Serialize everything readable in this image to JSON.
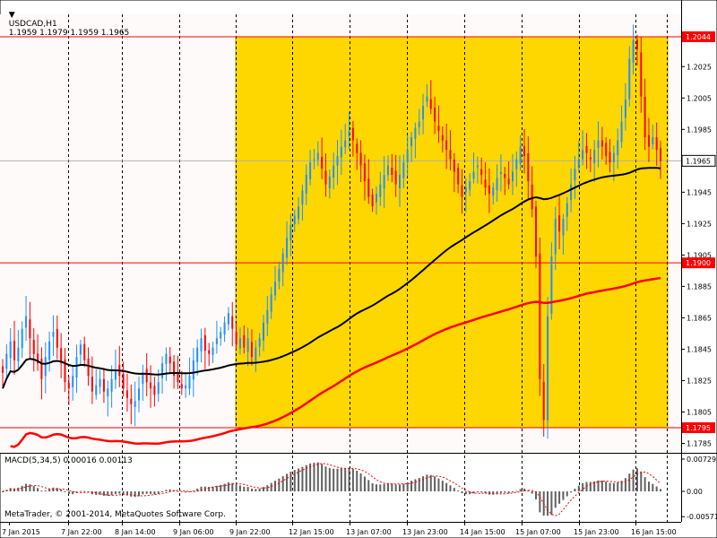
{
  "header": {
    "symbol": "USDCAD,H1",
    "quote_values": "1.1959 1.1979 1.1959 1.1965",
    "dropdown_icon": "triangle-down-icon"
  },
  "copyright": "MetaTrader, © 2001-2014, MetaQuotes Software Corp.",
  "macd": {
    "label": "MACD(5,34,5) 0.00016 0.00113",
    "ticks": [
      {
        "label": "0.00729",
        "value": 0.00729
      },
      {
        "label": "0.00",
        "value": 0
      },
      {
        "label": "-0.00571",
        "value": -0.00571
      }
    ]
  },
  "price_axis": {
    "ticks": [
      {
        "label": "1.2025",
        "value": 1.2025
      },
      {
        "label": "1.2005",
        "value": 1.2005
      },
      {
        "label": "1.1985",
        "value": 1.1985
      },
      {
        "label": "1.1945",
        "value": 1.1945
      },
      {
        "label": "1.1925",
        "value": 1.1925
      },
      {
        "label": "1.1905",
        "value": 1.1905
      },
      {
        "label": "1.1885",
        "value": 1.1885
      },
      {
        "label": "1.1865",
        "value": 1.1865
      },
      {
        "label": "1.1845",
        "value": 1.1845
      },
      {
        "label": "1.1825",
        "value": 1.1825
      },
      {
        "label": "1.1805",
        "value": 1.1805
      },
      {
        "label": "1.1785",
        "value": 1.1785
      }
    ],
    "tags": [
      {
        "label": "1.2044",
        "value": 1.2044,
        "style": "level"
      },
      {
        "label": "1.1965",
        "value": 1.1965,
        "style": "current"
      },
      {
        "label": "1.1900",
        "value": 1.19,
        "style": "level"
      },
      {
        "label": "1.1795",
        "value": 1.1795,
        "style": "level"
      }
    ]
  },
  "time_axis": {
    "labels": [
      "7 Jan 2015",
      "7 Jan 22:00",
      "8 Jan 14:00",
      "9 Jan 06:00",
      "9 Jan 22:00",
      "12 Jan 15:00",
      "13 Jan 07:00",
      "13 Jan 23:00",
      "14 Jan 15:00",
      "15 Jan 07:00",
      "15 Jan 23:00",
      "16 Jan 15:00"
    ]
  },
  "colors": {
    "bull": "#1e90ff",
    "bear": "#ff0000",
    "ma_fast": "#000000",
    "ma_slow": "#ff0000",
    "rect_fill": "#ffd700",
    "level_line": "#ff0000",
    "grid": "#000000",
    "macd_hist": "#606060",
    "macd_signal": "#ff0000"
  },
  "chart_data": {
    "type": "candlestick",
    "instrument": "USDCAD",
    "timeframe": "H1",
    "ylim": [
      1.1779,
      1.2056
    ],
    "levels": [
      1.2044,
      1.19,
      1.1795
    ],
    "rectangle": {
      "price_top": 1.2044,
      "price_bottom": 1.1795
    },
    "closes": [
      1.183,
      1.1842,
      1.185,
      1.1838,
      1.1846,
      1.1858,
      1.1866,
      1.1852,
      1.1842,
      1.1836,
      1.1826,
      1.184,
      1.185,
      1.1856,
      1.1846,
      1.1836,
      1.1824,
      1.182,
      1.1828,
      1.184,
      1.1848,
      1.1838,
      1.1828,
      1.1818,
      1.1822,
      1.1826,
      1.1818,
      1.182,
      1.1826,
      1.1832,
      1.1828,
      1.182,
      1.1814,
      1.181,
      1.1812,
      1.182,
      1.183,
      1.1824,
      1.182,
      1.1816,
      1.1824,
      1.1836,
      1.1842,
      1.1836,
      1.1828,
      1.1824,
      1.182,
      1.1822,
      1.1828,
      1.1838,
      1.1846,
      1.1852,
      1.1844,
      1.1842,
      1.1846,
      1.1852,
      1.1856,
      1.1862,
      1.1868,
      1.1858,
      1.1848,
      1.1852,
      1.1846,
      1.1852,
      1.184,
      1.1846,
      1.1852,
      1.1862,
      1.187,
      1.188,
      1.1888,
      1.1896,
      1.1906,
      1.1916,
      1.1924,
      1.193,
      1.1936,
      1.1946,
      1.1956,
      1.1964,
      1.1966,
      1.197,
      1.196,
      1.195,
      1.1955,
      1.1962,
      1.1968,
      1.1974,
      1.1978,
      1.1984,
      1.1978,
      1.197,
      1.1962,
      1.1952,
      1.1942,
      1.1936,
      1.1944,
      1.195,
      1.1956,
      1.1962,
      1.1956,
      1.195,
      1.1956,
      1.1964,
      1.1972,
      1.198,
      1.1986,
      1.199,
      1.2,
      1.2006,
      1.1998,
      1.199,
      1.1984,
      1.1978,
      1.1972,
      1.1966,
      1.1958,
      1.195,
      1.1942,
      1.1948,
      1.1952,
      1.1958,
      1.1962,
      1.1956,
      1.1948,
      1.1944,
      1.1948,
      1.1954,
      1.1958,
      1.1954,
      1.195,
      1.1958,
      1.1966,
      1.1974,
      1.1968,
      1.1952,
      1.1934,
      1.1904,
      1.1826,
      1.18,
      1.1866,
      1.1904,
      1.1928,
      1.192,
      1.1928,
      1.1938,
      1.195,
      1.196,
      1.1966,
      1.1972,
      1.197,
      1.1966,
      1.1972,
      1.1978,
      1.1974,
      1.1968,
      1.1964,
      1.197,
      1.1978,
      1.199,
      1.2004,
      1.203,
      1.2042,
      1.2036,
      1.2006,
      1.198,
      1.1974,
      1.198,
      1.1972,
      1.1965
    ],
    "ma_fast": {
      "name": "",
      "values_ref": "computed"
    },
    "ma_slow": {
      "name": "",
      "values_ref": "computed"
    },
    "macd_params": [
      5,
      34,
      5
    ]
  }
}
